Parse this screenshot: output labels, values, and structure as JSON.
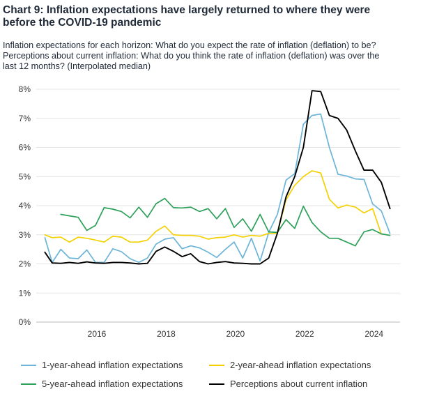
{
  "title_line1": "Chart 9: Inflation expectations have largely returned to where they were",
  "title_line2": "before the COVID-19 pandemic",
  "subtitle_line1": "Inflation expectations for each horizon: What do you expect the rate of inflation (deflation) to be?",
  "subtitle_line2": "Perceptions about current inflation: What do you think the rate of inflation (deflation) was over the",
  "subtitle_line3": "last 12 months? (Interpolated median)",
  "legend": {
    "s1": "1-year-ahead inflation expectations",
    "s2": "2-year-ahead inflation expectations",
    "s3": "5-year-ahead inflation expectations",
    "s4": "Perceptions about current inflation"
  },
  "chart_data": {
    "type": "line",
    "title": "Chart 9: Inflation expectations have largely returned to where they were before the COVID-19 pandemic",
    "xlabel": "",
    "ylabel": "",
    "xlim": [
      2014.25,
      2024.75
    ],
    "ylim": [
      0,
      8
    ],
    "x_ticks": [
      2016,
      2018,
      2020,
      2022,
      2024
    ],
    "x_tick_labels": [
      "2016",
      "2018",
      "2020",
      "2022",
      "2024"
    ],
    "y_ticks": [
      0,
      1,
      2,
      3,
      4,
      5,
      6,
      7,
      8
    ],
    "y_tick_labels": [
      "0%",
      "1%",
      "2%",
      "3%",
      "4%",
      "5%",
      "6%",
      "7%",
      "8%"
    ],
    "legend_position": "bottom",
    "series": [
      {
        "name": "1-year-ahead inflation expectations",
        "color": "#6cb4d8",
        "points": [
          [
            2014.5,
            2.9
          ],
          [
            2014.71,
            2.05
          ],
          [
            2014.96,
            2.5
          ],
          [
            2015.21,
            2.2
          ],
          [
            2015.46,
            2.18
          ],
          [
            2015.71,
            2.48
          ],
          [
            2015.96,
            2.05
          ],
          [
            2016.21,
            2.05
          ],
          [
            2016.46,
            2.52
          ],
          [
            2016.71,
            2.42
          ],
          [
            2016.96,
            2.18
          ],
          [
            2017.21,
            2.05
          ],
          [
            2017.46,
            2.2
          ],
          [
            2017.71,
            2.68
          ],
          [
            2017.96,
            2.85
          ],
          [
            2018.21,
            2.9
          ],
          [
            2018.46,
            2.52
          ],
          [
            2018.71,
            2.62
          ],
          [
            2018.96,
            2.55
          ],
          [
            2019.21,
            2.4
          ],
          [
            2019.46,
            2.22
          ],
          [
            2019.71,
            2.5
          ],
          [
            2019.96,
            2.75
          ],
          [
            2020.21,
            2.2
          ],
          [
            2020.46,
            2.88
          ],
          [
            2020.71,
            2.1
          ],
          [
            2020.96,
            3.08
          ],
          [
            2021.21,
            3.7
          ],
          [
            2021.46,
            4.88
          ],
          [
            2021.71,
            5.1
          ],
          [
            2021.96,
            6.8
          ],
          [
            2022.21,
            7.1
          ],
          [
            2022.46,
            7.15
          ],
          [
            2022.71,
            6.0
          ],
          [
            2022.96,
            5.08
          ],
          [
            2023.21,
            5.02
          ],
          [
            2023.46,
            4.92
          ],
          [
            2023.71,
            4.9
          ],
          [
            2023.96,
            4.06
          ],
          [
            2024.21,
            3.82
          ],
          [
            2024.46,
            3.04
          ]
        ]
      },
      {
        "name": "2-year-ahead inflation expectations",
        "color": "#f5d000",
        "points": [
          [
            2014.5,
            3.0
          ],
          [
            2014.71,
            2.9
          ],
          [
            2014.96,
            2.92
          ],
          [
            2015.21,
            2.75
          ],
          [
            2015.46,
            2.92
          ],
          [
            2015.71,
            2.88
          ],
          [
            2015.96,
            2.82
          ],
          [
            2016.21,
            2.75
          ],
          [
            2016.46,
            2.95
          ],
          [
            2016.71,
            2.92
          ],
          [
            2016.96,
            2.75
          ],
          [
            2017.21,
            2.75
          ],
          [
            2017.46,
            2.82
          ],
          [
            2017.71,
            3.12
          ],
          [
            2017.96,
            3.3
          ],
          [
            2018.21,
            3.0
          ],
          [
            2018.46,
            2.98
          ],
          [
            2018.71,
            2.98
          ],
          [
            2018.96,
            2.95
          ],
          [
            2019.21,
            2.85
          ],
          [
            2019.46,
            2.9
          ],
          [
            2019.71,
            2.92
          ],
          [
            2019.96,
            3.0
          ],
          [
            2020.21,
            2.92
          ],
          [
            2020.46,
            2.98
          ],
          [
            2020.71,
            2.95
          ],
          [
            2020.96,
            3.05
          ],
          [
            2021.21,
            3.05
          ],
          [
            2021.46,
            4.2
          ],
          [
            2021.71,
            4.7
          ],
          [
            2021.96,
            5.0
          ],
          [
            2022.21,
            5.2
          ],
          [
            2022.46,
            5.12
          ],
          [
            2022.71,
            4.22
          ],
          [
            2022.96,
            3.92
          ],
          [
            2023.21,
            4.02
          ],
          [
            2023.46,
            3.95
          ],
          [
            2023.71,
            3.75
          ],
          [
            2023.96,
            3.9
          ],
          [
            2024.21,
            3.02
          ]
        ]
      },
      {
        "name": "5-year-ahead inflation expectations",
        "color": "#2da05a",
        "points": [
          [
            2014.96,
            3.7
          ],
          [
            2015.21,
            3.65
          ],
          [
            2015.46,
            3.6
          ],
          [
            2015.71,
            3.15
          ],
          [
            2015.96,
            3.32
          ],
          [
            2016.21,
            3.93
          ],
          [
            2016.46,
            3.88
          ],
          [
            2016.71,
            3.8
          ],
          [
            2016.96,
            3.58
          ],
          [
            2017.21,
            3.95
          ],
          [
            2017.46,
            3.6
          ],
          [
            2017.71,
            4.07
          ],
          [
            2017.96,
            4.25
          ],
          [
            2018.21,
            3.93
          ],
          [
            2018.46,
            3.92
          ],
          [
            2018.71,
            3.95
          ],
          [
            2018.96,
            3.8
          ],
          [
            2019.21,
            3.9
          ],
          [
            2019.46,
            3.55
          ],
          [
            2019.71,
            3.9
          ],
          [
            2019.96,
            3.25
          ],
          [
            2020.21,
            3.55
          ],
          [
            2020.46,
            3.12
          ],
          [
            2020.71,
            3.7
          ],
          [
            2020.96,
            3.1
          ],
          [
            2021.21,
            3.08
          ],
          [
            2021.46,
            3.52
          ],
          [
            2021.71,
            3.22
          ],
          [
            2021.96,
            3.98
          ],
          [
            2022.21,
            3.42
          ],
          [
            2022.46,
            3.1
          ],
          [
            2022.71,
            2.88
          ],
          [
            2022.96,
            2.88
          ],
          [
            2023.21,
            2.75
          ],
          [
            2023.46,
            2.62
          ],
          [
            2023.71,
            3.1
          ],
          [
            2023.96,
            3.18
          ],
          [
            2024.21,
            3.03
          ],
          [
            2024.46,
            2.98
          ]
        ]
      },
      {
        "name": "Perceptions about current inflation",
        "color": "#000000",
        "points": [
          [
            2014.5,
            2.4
          ],
          [
            2014.71,
            2.03
          ],
          [
            2014.96,
            2.02
          ],
          [
            2015.21,
            2.05
          ],
          [
            2015.46,
            2.02
          ],
          [
            2015.71,
            2.07
          ],
          [
            2015.96,
            2.03
          ],
          [
            2016.21,
            2.02
          ],
          [
            2016.46,
            2.05
          ],
          [
            2016.71,
            2.05
          ],
          [
            2016.96,
            2.03
          ],
          [
            2017.21,
            2.0
          ],
          [
            2017.46,
            2.02
          ],
          [
            2017.71,
            2.43
          ],
          [
            2017.96,
            2.58
          ],
          [
            2018.21,
            2.43
          ],
          [
            2018.46,
            2.25
          ],
          [
            2018.71,
            2.35
          ],
          [
            2018.96,
            2.08
          ],
          [
            2019.21,
            2.0
          ],
          [
            2019.46,
            2.05
          ],
          [
            2019.71,
            2.08
          ],
          [
            2019.96,
            2.03
          ],
          [
            2020.21,
            2.02
          ],
          [
            2020.46,
            2.0
          ],
          [
            2020.71,
            2.0
          ],
          [
            2020.96,
            2.2
          ],
          [
            2021.21,
            3.05
          ],
          [
            2021.46,
            4.3
          ],
          [
            2021.71,
            5.0
          ],
          [
            2021.96,
            6.0
          ],
          [
            2022.21,
            7.95
          ],
          [
            2022.46,
            7.92
          ],
          [
            2022.71,
            7.1
          ],
          [
            2022.96,
            7.0
          ],
          [
            2023.21,
            6.6
          ],
          [
            2023.46,
            5.88
          ],
          [
            2023.71,
            5.22
          ],
          [
            2023.96,
            5.22
          ],
          [
            2024.21,
            4.8
          ],
          [
            2024.46,
            3.9
          ]
        ]
      }
    ]
  }
}
